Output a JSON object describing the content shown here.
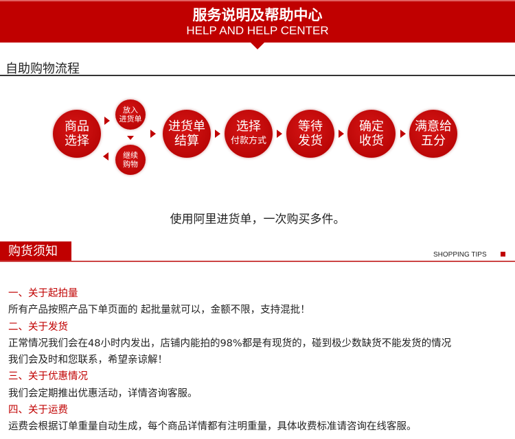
{
  "banner": {
    "title": "服务说明及帮助中心",
    "subtitle": "HELP AND HELP CENTER"
  },
  "process": {
    "title": "自助购物流程",
    "start": {
      "line1": "商品",
      "line2": "选择"
    },
    "add_to_cart": {
      "line1": "放入",
      "line2": "进货单"
    },
    "continue": {
      "line1": "继续",
      "line2": "购物"
    },
    "steps": [
      {
        "line1": "进货单",
        "line2": "结算"
      },
      {
        "line1": "选择",
        "line2": "付款方式"
      },
      {
        "line1": "等待",
        "line2": "发货"
      },
      {
        "line1": "确定",
        "line2": "收货"
      },
      {
        "line1": "满意给",
        "line2": "五分"
      }
    ],
    "tagline": "使用阿里进货单，一次购买多件。"
  },
  "tips": {
    "title": "购货须知",
    "title_en": "SHOPPING TIPS",
    "items": [
      {
        "heading": "一、关于起拍量",
        "text": [
          "所有产品按照产品下单页面的 起批量就可以，金额不限，支持混批！"
        ]
      },
      {
        "heading": "二、关于发货",
        "text": [
          "正常情况我们会在48小时内发出，店铺内能拍的98%都是有现货的，碰到极少数缺货不能发货的情况",
          "我们会及时和您联系，希望亲谅解！"
        ]
      },
      {
        "heading": "三、关于优惠情况",
        "text": [
          "我们会定期推出优惠活动，详情咨询客服。"
        ]
      },
      {
        "heading": "四、关于运费",
        "text": [
          "运费会根据订单重量自动生成，每个商品详情都有注明重量，具体收费标准请咨询在线客服。"
        ]
      }
    ]
  },
  "colors": {
    "accent": "#c00000"
  }
}
